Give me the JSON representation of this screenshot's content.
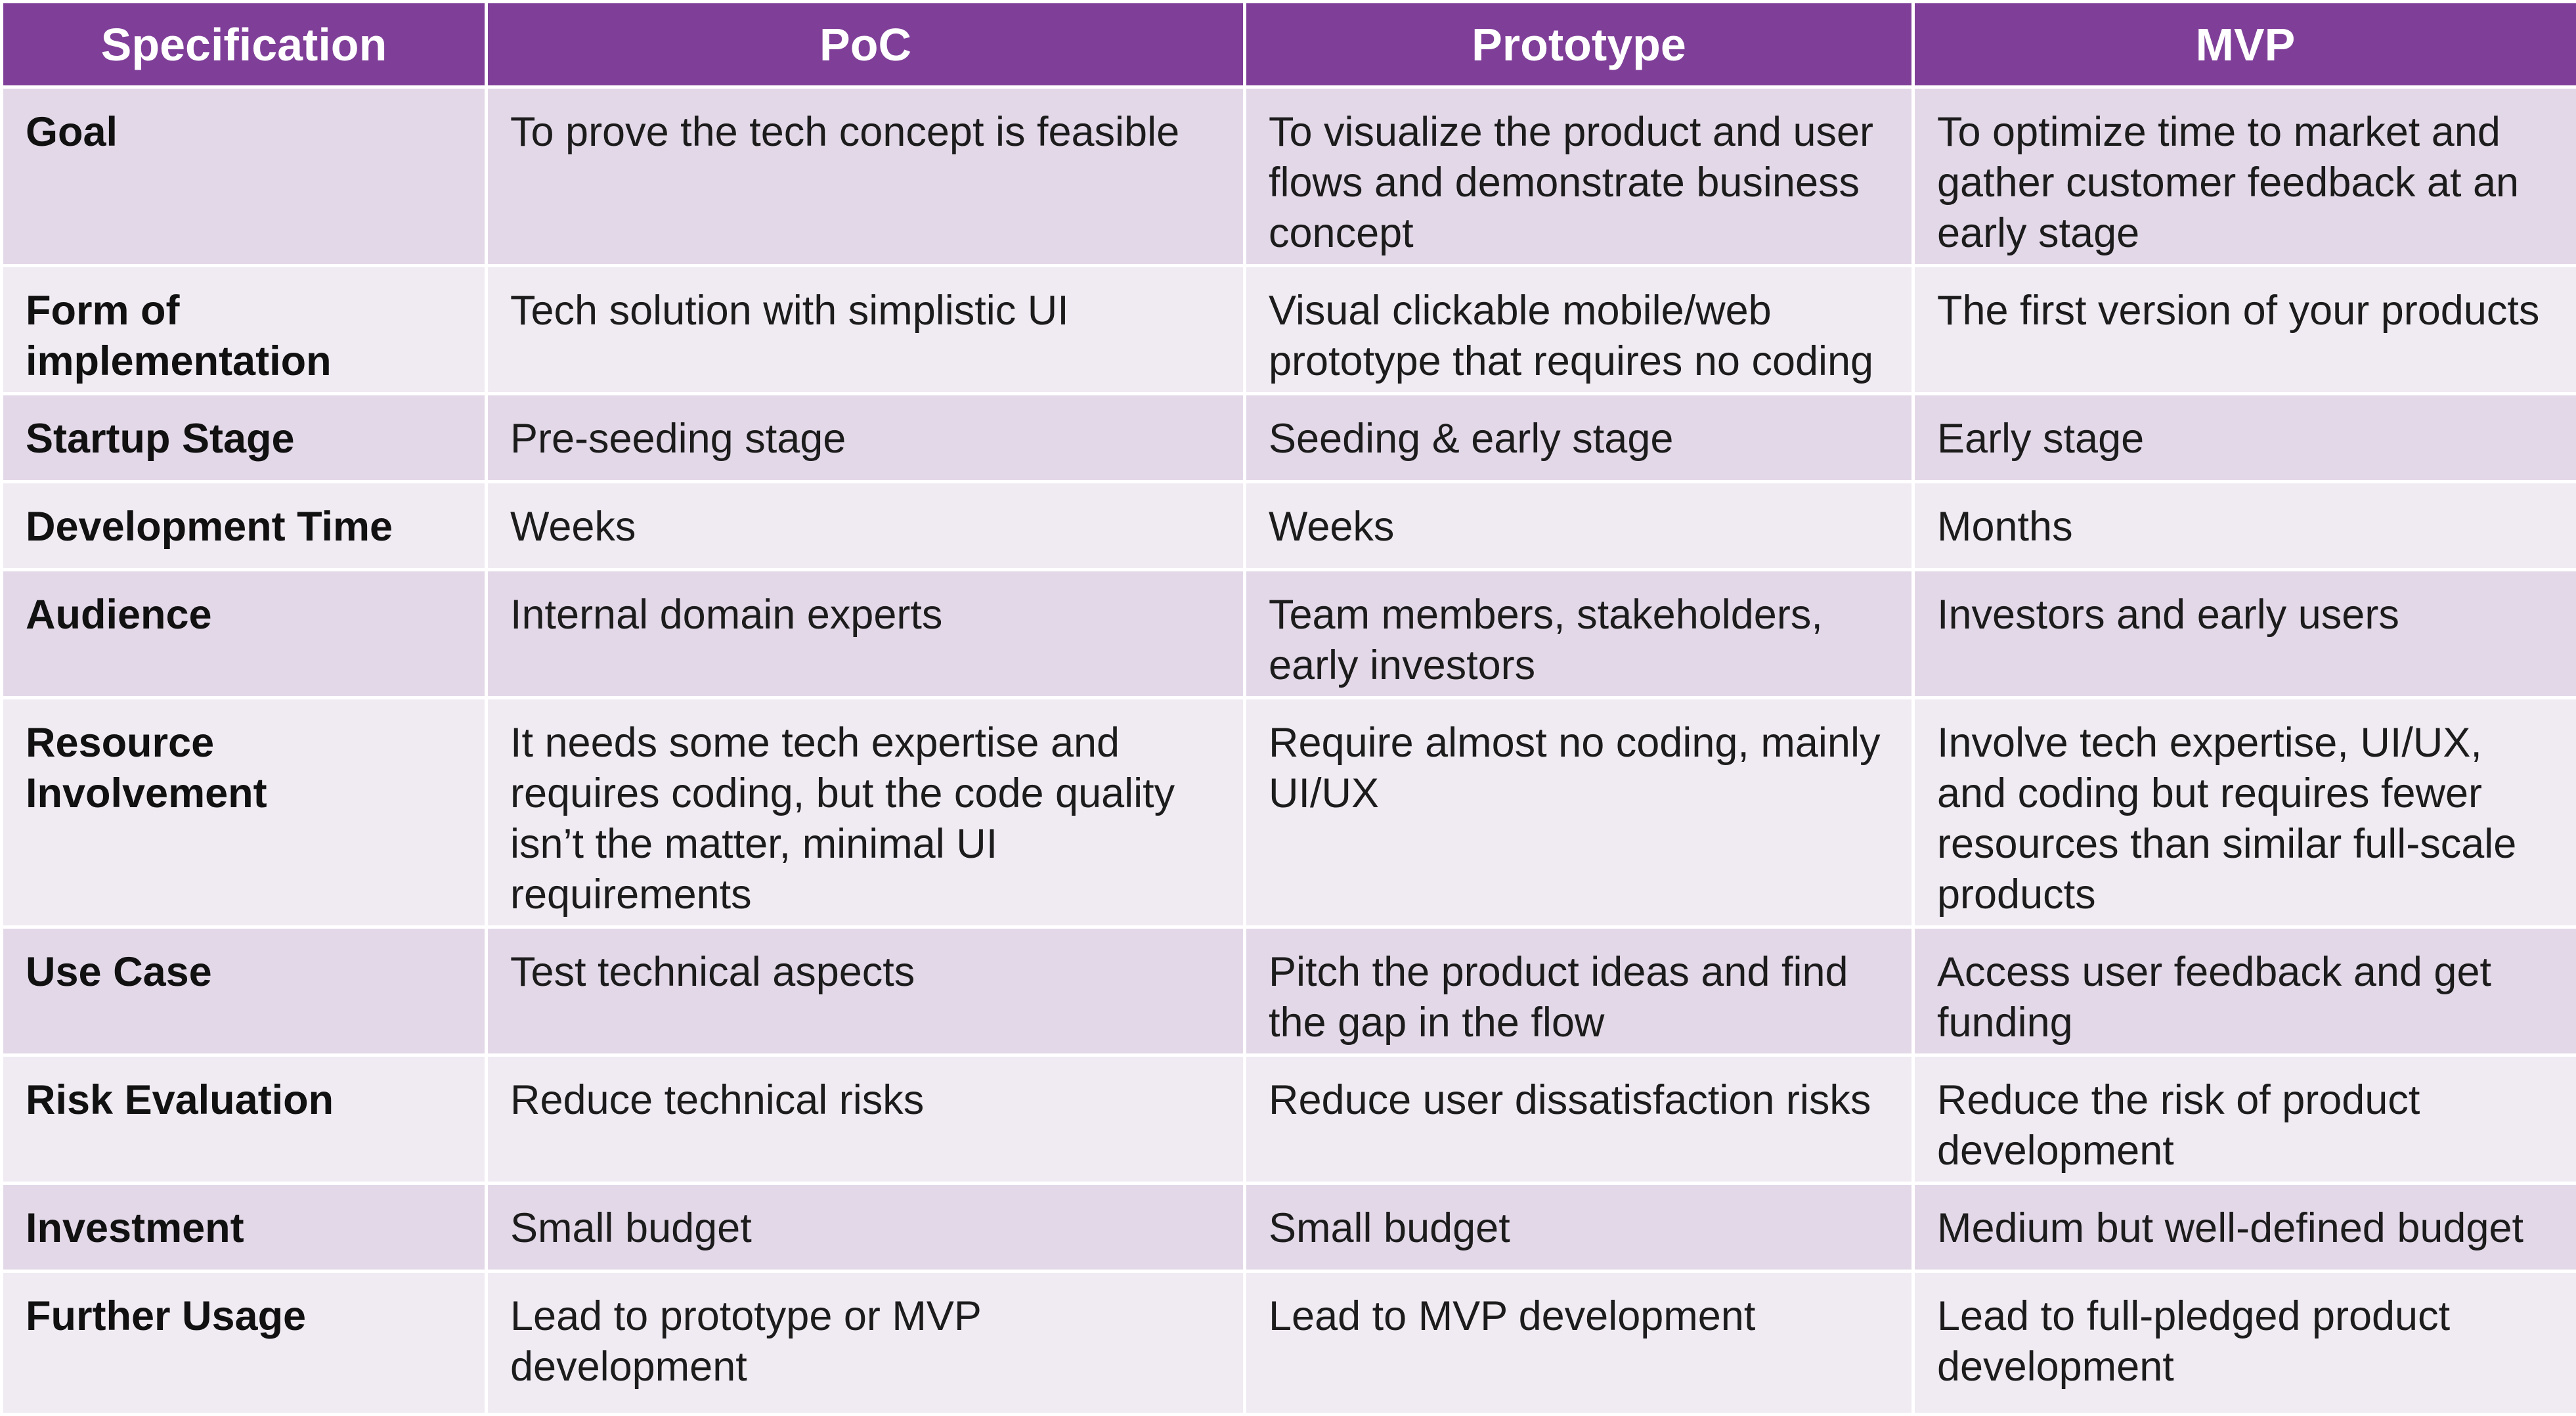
{
  "table": {
    "headers": [
      "Specification",
      "PoC",
      "Prototype",
      "MVP"
    ],
    "rows": [
      {
        "spec": "Goal",
        "poc": "To prove the tech concept is feasible",
        "prototype": "To visualize the product and user flows and demonstrate business concept",
        "mvp": "To optimize time to market and gather customer feedback at an early stage"
      },
      {
        "spec": "Form of implementation",
        "poc": "Tech solution with simplistic UI",
        "prototype": "Visual clickable mobile/web prototype that requires no coding",
        "mvp": "The first version of your products"
      },
      {
        "spec": "Startup Stage",
        "poc": "Pre-seeding stage",
        "prototype": "Seeding & early stage",
        "mvp": "Early stage"
      },
      {
        "spec": "Development Time",
        "poc": "Weeks",
        "prototype": "Weeks",
        "mvp": "Months"
      },
      {
        "spec": "Audience",
        "poc": "Internal domain experts",
        "prototype": "Team members, stakeholders, early investors",
        "mvp": "Investors and early users"
      },
      {
        "spec": "Resource Involvement",
        "poc": "It needs some tech expertise and requires coding, but the code quality isn’t the matter, minimal UI requirements",
        "prototype": "Require almost no coding, mainly UI/UX",
        "mvp": "Involve tech expertise, UI/UX, and coding but requires fewer resources than similar full-scale products"
      },
      {
        "spec": "Use Case",
        "poc": "Test technical aspects",
        "prototype": "Pitch the product ideas and find the gap in the flow",
        "mvp": "Access user feedback and get funding"
      },
      {
        "spec": "Risk Evaluation",
        "poc": "Reduce technical risks",
        "prototype": "Reduce user dissatisfaction risks",
        "mvp": "Reduce the risk of product development"
      },
      {
        "spec": "Investment",
        "poc": "Small budget",
        "prototype": "Small budget",
        "mvp": "Medium but well-defined budget"
      },
      {
        "spec": "Further Usage",
        "poc": "Lead to prototype or MVP development",
        "prototype": "Lead to MVP development",
        "mvp": "Lead to full-pledged product development"
      }
    ]
  },
  "colors": {
    "header_bg": "#7f3f98",
    "row_dark": "#e3d8e8",
    "row_light": "#f0eaf2"
  }
}
